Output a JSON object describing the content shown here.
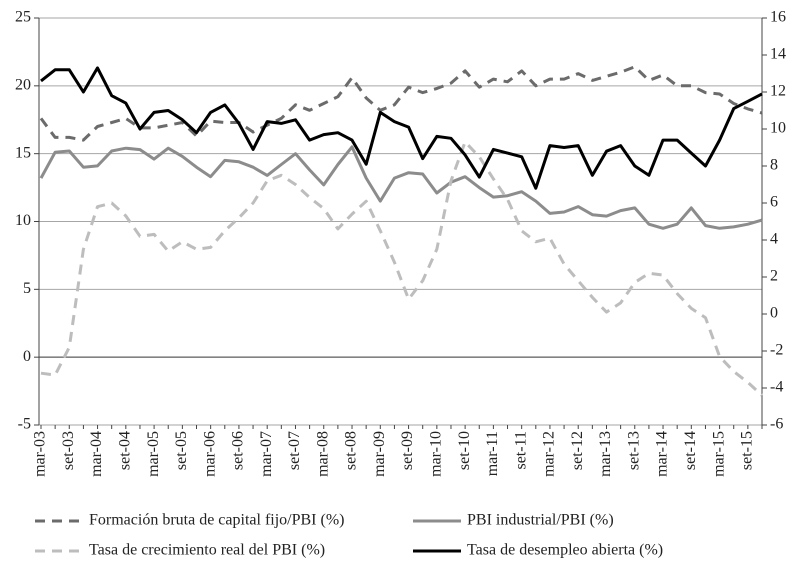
{
  "chart_data": {
    "type": "line",
    "categories": [
      "mar-03",
      null,
      "set-03",
      null,
      "mar-04",
      null,
      "set-04",
      null,
      "mar-05",
      null,
      "set-05",
      null,
      "mar-06",
      null,
      "set-06",
      null,
      "mar-07",
      null,
      "set-07",
      null,
      "mar-08",
      null,
      "set-08",
      null,
      "mar-09",
      null,
      "set-09",
      null,
      "mar-10",
      null,
      "set-10",
      null,
      "mar-11",
      null,
      "set-11",
      null,
      "mar-12",
      null,
      "set-12",
      null,
      "mar-13",
      null,
      "set-13",
      null,
      "mar-14",
      null,
      "set-14",
      null,
      "mar-15",
      null,
      "set-15",
      null
    ],
    "ylim": [
      -5,
      25
    ],
    "yticks": [
      -5,
      0,
      5,
      10,
      15,
      20,
      25
    ],
    "y2lim": [
      -6,
      16
    ],
    "y2ticks": [
      -6,
      -4,
      -2,
      0,
      2,
      4,
      6,
      8,
      10,
      12,
      14,
      16
    ],
    "grid": true,
    "series": [
      {
        "name": "Formación bruta de capital fijo/PBI (%)",
        "color": "#6b6b6b",
        "dash": true,
        "values": [
          17.6,
          16.2,
          16.2,
          16,
          17,
          17.3,
          17.6,
          16.9,
          16.9,
          17.1,
          17.3,
          16.3,
          17.4,
          17.3,
          17.3,
          16.6,
          17.1,
          17.6,
          18.6,
          18.2,
          18.7,
          19.2,
          20.6,
          19.1,
          18.2,
          18.6,
          19.9,
          19.5,
          19.8,
          20.2,
          21.1,
          19.9,
          20.5,
          20.3,
          21.1,
          20,
          20.5,
          20.5,
          20.9,
          20.4,
          20.7,
          21,
          21.4,
          20.4,
          20.8,
          20,
          20,
          19.5,
          19.4,
          18.7,
          18.3,
          18
        ]
      },
      {
        "name": "PBI industrial/PBI (%)",
        "color": "#8c8c8c",
        "dash": false,
        "values": [
          13.2,
          15.1,
          15.2,
          14,
          14.1,
          15.2,
          15.4,
          15.3,
          14.6,
          15.4,
          14.8,
          14,
          13.3,
          14.5,
          14.4,
          14,
          13.4,
          14.2,
          15,
          13.8,
          12.7,
          14.2,
          15.5,
          13.2,
          11.5,
          13.2,
          13.6,
          13.5,
          12.1,
          12.9,
          13.3,
          12.5,
          11.8,
          11.9,
          12.2,
          11.5,
          10.6,
          10.7,
          11.1,
          10.5,
          10.4,
          10.8,
          11,
          9.8,
          9.5,
          9.8,
          11,
          9.7,
          9.5,
          9.6,
          9.8,
          10.1
        ]
      },
      {
        "name": "Tasa de crecimiento real del PBI (%)",
        "color": "#bdbdbd",
        "dash": true,
        "axis": "y2",
        "values": [
          -3.2,
          -3.3,
          -1.8,
          3.5,
          5.8,
          6,
          5.3,
          4.2,
          4.3,
          3.4,
          3.9,
          3.5,
          3.6,
          4.5,
          5.2,
          6,
          7.2,
          7.5,
          7,
          6.3,
          5.7,
          4.6,
          5.4,
          6.1,
          4.5,
          2.8,
          0.8,
          1.8,
          3.5,
          7.2,
          9.3,
          8.5,
          7.3,
          6.2,
          4.5,
          3.9,
          4.1,
          2.7,
          1.8,
          0.9,
          0.1,
          0.6,
          1.7,
          2.2,
          2.1,
          1.1,
          0.3,
          -0.2,
          -2.3,
          -3.1,
          -3.7,
          -4.4
        ]
      },
      {
        "name": "Tasa de desempleo abierta (%)",
        "color": "#000000",
        "dash": false,
        "axis": "y2",
        "values": [
          12.6,
          13.2,
          13.2,
          12,
          13.3,
          11.8,
          11.4,
          10,
          10.9,
          11,
          10.5,
          9.8,
          10.9,
          11.3,
          10.3,
          8.9,
          10.4,
          10.3,
          10.5,
          9.4,
          9.7,
          9.8,
          9.4,
          8.1,
          10.9,
          10.4,
          10.1,
          8.4,
          9.6,
          9.5,
          8.6,
          7.4,
          8.9,
          8.7,
          8.5,
          6.8,
          9.1,
          9,
          9.1,
          7.5,
          8.8,
          9.1,
          8,
          7.5,
          9.4,
          9.4,
          8.7,
          8,
          9.4,
          11.1,
          11.5,
          11.9
        ]
      }
    ]
  }
}
